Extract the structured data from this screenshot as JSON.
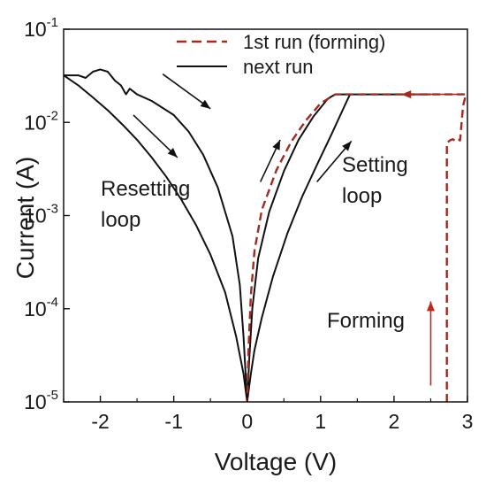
{
  "chart_data": {
    "type": "line",
    "xlabel": "Voltage (V)",
    "ylabel": "Current (A)",
    "x_scale": "linear",
    "y_scale": "log",
    "xlim": [
      -2.5,
      3.0
    ],
    "ylim": [
      1e-05,
      0.1
    ],
    "x_ticks": [
      -2,
      -1,
      0,
      1,
      2,
      3
    ],
    "x_tick_labels": [
      "-2",
      "-1",
      "0",
      "1",
      "2",
      "3"
    ],
    "y_ticks": [
      1e-05,
      0.0001,
      0.001,
      0.01,
      0.1
    ],
    "y_tick_labels": [
      {
        "base": "10",
        "exp": "-5"
      },
      {
        "base": "10",
        "exp": "-4"
      },
      {
        "base": "10",
        "exp": "-3"
      },
      {
        "base": "10",
        "exp": "-2"
      },
      {
        "base": "10",
        "exp": "-1"
      }
    ],
    "grid": false,
    "legend_position": "top-right",
    "series": [
      {
        "name": "1st run (forming)",
        "color": "#a52a1e",
        "dash": "dashed",
        "points": [
          [
            2.72,
            1e-05
          ],
          [
            2.72,
            0.006
          ],
          [
            2.76,
            0.0064
          ],
          [
            2.8,
            0.0066
          ],
          [
            2.84,
            0.0063
          ],
          [
            2.86,
            0.0065
          ],
          [
            2.88,
            0.0065
          ],
          [
            2.9,
            0.0064
          ],
          [
            2.94,
            0.015
          ],
          [
            2.98,
            0.02
          ],
          [
            2.5,
            0.02
          ],
          [
            2.0,
            0.02
          ],
          [
            1.5,
            0.02
          ],
          [
            1.2,
            0.02
          ],
          [
            1.0,
            0.016
          ],
          [
            0.8,
            0.0105
          ],
          [
            0.6,
            0.0062
          ],
          [
            0.4,
            0.0031
          ],
          [
            0.2,
            0.00115
          ],
          [
            0.1,
            0.00042
          ],
          [
            0.05,
            0.00014
          ],
          [
            0.02,
            4e-05
          ],
          [
            0.0,
            1e-05
          ]
        ]
      },
      {
        "name": "next run",
        "color": "#111111",
        "dash": "solid",
        "segments": [
          [
            [
              0.0,
              1e-05
            ],
            [
              0.03,
              3e-05
            ],
            [
              0.07,
              0.0001
            ],
            [
              0.15,
              0.00035
            ],
            [
              0.3,
              0.0011
            ],
            [
              0.5,
              0.003
            ],
            [
              0.7,
              0.0065
            ],
            [
              0.9,
              0.0115
            ],
            [
              1.1,
              0.018
            ],
            [
              1.2,
              0.02
            ],
            [
              1.6,
              0.02
            ],
            [
              2.0,
              0.02
            ],
            [
              2.5,
              0.02
            ]
          ],
          [
            [
              0.0,
              1e-05
            ],
            [
              0.05,
              2e-05
            ],
            [
              0.1,
              3.6e-05
            ],
            [
              0.2,
              8e-05
            ],
            [
              0.35,
              0.00022
            ],
            [
              0.55,
              0.00065
            ],
            [
              0.75,
              0.0016
            ],
            [
              0.95,
              0.0035
            ],
            [
              1.15,
              0.0075
            ],
            [
              1.3,
              0.0135
            ],
            [
              1.4,
              0.02
            ]
          ],
          [
            [
              0.0,
              1e-05
            ],
            [
              -0.05,
              5e-05
            ],
            [
              -0.1,
              0.00018
            ],
            [
              -0.2,
              0.0006
            ],
            [
              -0.4,
              0.002
            ],
            [
              -0.6,
              0.0045
            ],
            [
              -0.8,
              0.008
            ],
            [
              -1.0,
              0.012
            ],
            [
              -1.3,
              0.017
            ],
            [
              -1.5,
              0.02
            ],
            [
              -1.6,
              0.023
            ],
            [
              -1.65,
              0.02
            ],
            [
              -1.72,
              0.025
            ],
            [
              -1.8,
              0.028
            ],
            [
              -1.9,
              0.035
            ],
            [
              -2.0,
              0.037
            ],
            [
              -2.1,
              0.035
            ],
            [
              -2.2,
              0.03
            ],
            [
              -2.3,
              0.032
            ],
            [
              -2.5,
              0.032
            ]
          ],
          [
            [
              -2.5,
              0.032
            ],
            [
              -2.3,
              0.025
            ],
            [
              -2.1,
              0.0185
            ],
            [
              -1.9,
              0.0135
            ],
            [
              -1.7,
              0.0095
            ],
            [
              -1.5,
              0.0065
            ],
            [
              -1.3,
              0.0042
            ],
            [
              -1.1,
              0.0026
            ],
            [
              -0.9,
              0.0015
            ],
            [
              -0.7,
              0.0008
            ],
            [
              -0.5,
              0.00038
            ],
            [
              -0.3,
              0.00015
            ],
            [
              -0.15,
              5e-05
            ],
            [
              -0.05,
              2e-05
            ],
            [
              0.0,
              1e-05
            ]
          ]
        ]
      }
    ],
    "annotations": {
      "resetting_line1": "Resetting",
      "resetting_line2": "loop",
      "setting_line1": "Setting",
      "setting_line2": "loop",
      "forming": "Forming"
    },
    "arrows": [
      {
        "from": [
          -1.15,
          0.033
        ],
        "to": [
          -0.5,
          0.014
        ],
        "color": "#111111"
      },
      {
        "from": [
          -1.55,
          0.012
        ],
        "to": [
          -0.95,
          0.0042
        ],
        "color": "#111111"
      },
      {
        "from": [
          0.18,
          0.0023
        ],
        "to": [
          0.45,
          0.0065
        ],
        "color": "#111111"
      },
      {
        "from": [
          0.95,
          0.0023
        ],
        "to": [
          1.42,
          0.0063
        ],
        "color": "#111111"
      },
      {
        "from": [
          2.9,
          0.02
        ],
        "to": [
          2.1,
          0.02
        ],
        "color": "#a52a1e"
      },
      {
        "from": [
          2.5,
          1.5e-05
        ],
        "to": [
          2.5,
          0.00012
        ],
        "color": "#c0281e"
      }
    ]
  }
}
